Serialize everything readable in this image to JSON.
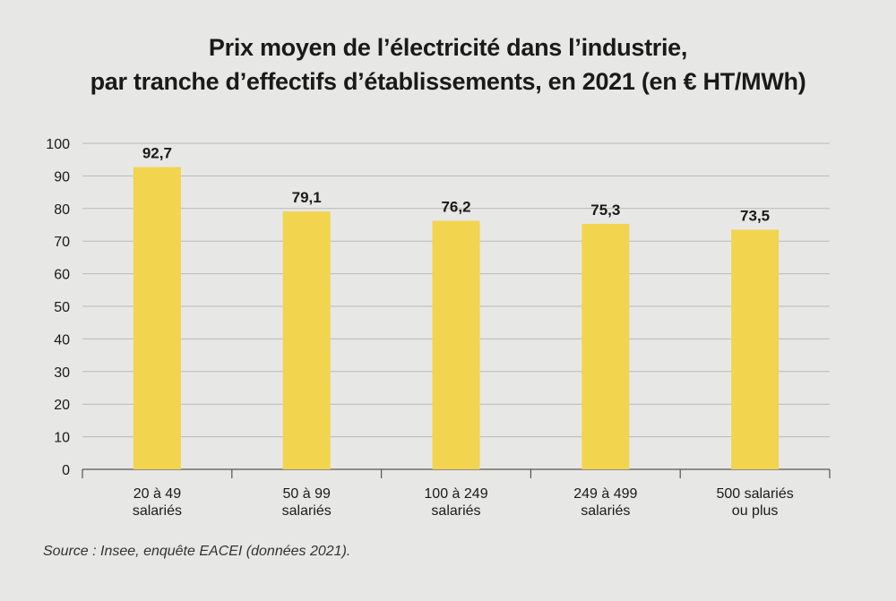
{
  "chart_data": {
    "type": "bar",
    "title": "Prix moyen de l’électricité dans l’industrie, par tranche d’effectifs d’établissements, en 2021 (en € HT/MWh)",
    "title_lines": [
      "Prix moyen de l’électricité dans l’industrie,",
      "par tranche d’effectifs d’établissements, en 2021 (en € HT/MWh)"
    ],
    "categories": [
      "20 à 49 salariés",
      "50 à 99 salariés",
      "100 à 249 salariés",
      "249 à 499 salariés",
      "500 salariés ou plus"
    ],
    "category_lines": [
      [
        "20 à 49",
        "salariés"
      ],
      [
        "50 à 99",
        "salariés"
      ],
      [
        "100 à 249",
        "salariés"
      ],
      [
        "249 à 499",
        "salariés"
      ],
      [
        "500 salariés",
        "ou plus"
      ]
    ],
    "values": [
      92.7,
      79.1,
      76.2,
      75.3,
      73.5
    ],
    "value_labels": [
      "92,7",
      "79,1",
      "76,2",
      "75,3",
      "73,5"
    ],
    "ylim": [
      0,
      100
    ],
    "yticks": [
      0,
      10,
      20,
      30,
      40,
      50,
      60,
      70,
      80,
      90,
      100
    ],
    "xlabel": "",
    "ylabel": "",
    "grid": true,
    "bar_color": "#f2d44e",
    "gridline_color": "#b9b9b9"
  },
  "source": "Source : Insee, enquête EACEI (données 2021)."
}
